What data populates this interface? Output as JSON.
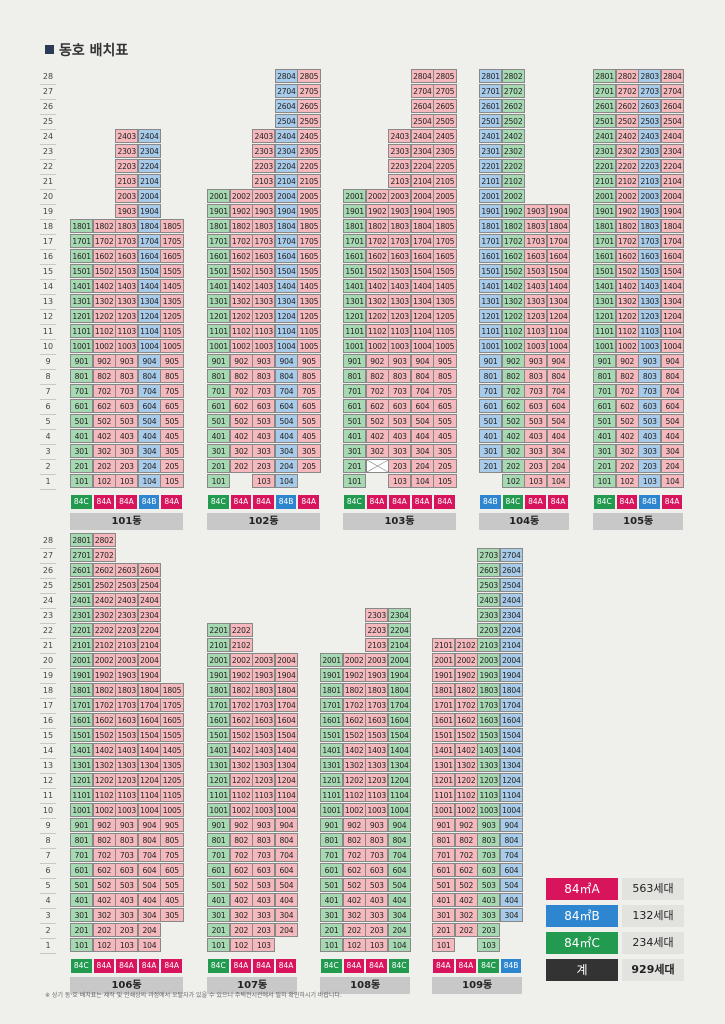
{
  "title": "동호 배치표",
  "floors": [
    "28",
    "27",
    "26",
    "25",
    "24",
    "23",
    "22",
    "21",
    "20",
    "19",
    "18",
    "17",
    "16",
    "15",
    "14",
    "13",
    "12",
    "11",
    "10",
    "9",
    "8",
    "7",
    "6",
    "5",
    "4",
    "3",
    "2",
    "1"
  ],
  "buildings": [
    {
      "name": "101동",
      "row": 0,
      "cols": [
        {
          "t": "C",
          "lo": 1,
          "hi": 18
        },
        {
          "t": "A",
          "lo": 1,
          "hi": 18
        },
        {
          "t": "A",
          "lo": 1,
          "hi": 24
        },
        {
          "t": "B",
          "lo": 1,
          "hi": 24
        },
        {
          "t": "A",
          "lo": 1,
          "hi": 18
        }
      ],
      "missing": []
    },
    {
      "name": "102동",
      "row": 0,
      "cols": [
        {
          "t": "C",
          "lo": 1,
          "hi": 20
        },
        {
          "t": "A",
          "lo": 2,
          "hi": 20
        },
        {
          "t": "A",
          "lo": 1,
          "hi": 24
        },
        {
          "t": "B",
          "lo": 1,
          "hi": 28
        },
        {
          "t": "A",
          "lo": 2,
          "hi": 28
        }
      ],
      "missing": [
        "102",
        "105"
      ]
    },
    {
      "name": "103동",
      "row": 0,
      "cols": [
        {
          "t": "C",
          "lo": 1,
          "hi": 20
        },
        {
          "t": "A",
          "lo": 2,
          "hi": 20
        },
        {
          "t": "A",
          "lo": 1,
          "hi": 24
        },
        {
          "t": "A",
          "lo": 1,
          "hi": 28
        },
        {
          "t": "A",
          "lo": 1,
          "hi": 28
        }
      ],
      "missing": [
        "202"
      ]
    },
    {
      "name": "104동",
      "row": 0,
      "cols": [
        {
          "t": "B",
          "lo": 2,
          "hi": 28
        },
        {
          "t": "C",
          "lo": 1,
          "hi": 28
        },
        {
          "t": "A",
          "lo": 1,
          "hi": 19
        },
        {
          "t": "A",
          "lo": 1,
          "hi": 19
        }
      ],
      "missing": [
        "101"
      ]
    },
    {
      "name": "105동",
      "row": 0,
      "cols": [
        {
          "t": "C",
          "lo": 1,
          "hi": 28
        },
        {
          "t": "A",
          "lo": 1,
          "hi": 28
        },
        {
          "t": "B",
          "lo": 1,
          "hi": 28
        },
        {
          "t": "A",
          "lo": 1,
          "hi": 28
        }
      ],
      "missing": []
    },
    {
      "name": "106동",
      "row": 1,
      "cols": [
        {
          "t": "C",
          "lo": 1,
          "hi": 28
        },
        {
          "t": "A",
          "lo": 1,
          "hi": 28
        },
        {
          "t": "A",
          "lo": 1,
          "hi": 26
        },
        {
          "t": "A",
          "lo": 1,
          "hi": 26
        },
        {
          "t": "A",
          "lo": 3,
          "hi": 18
        }
      ],
      "missing": [
        "205",
        "105"
      ]
    },
    {
      "name": "107동",
      "row": 1,
      "cols": [
        {
          "t": "C",
          "lo": 1,
          "hi": 22
        },
        {
          "t": "A",
          "lo": 1,
          "hi": 22
        },
        {
          "t": "A",
          "lo": 1,
          "hi": 20
        },
        {
          "t": "A",
          "lo": 2,
          "hi": 20
        }
      ],
      "missing": [
        "104"
      ]
    },
    {
      "name": "108동",
      "row": 1,
      "cols": [
        {
          "t": "C",
          "lo": 1,
          "hi": 20
        },
        {
          "t": "A",
          "lo": 1,
          "hi": 20
        },
        {
          "t": "A",
          "lo": 1,
          "hi": 23
        },
        {
          "t": "C",
          "lo": 1,
          "hi": 23
        }
      ],
      "missing": []
    },
    {
      "name": "109동",
      "row": 1,
      "cols": [
        {
          "t": "A",
          "lo": 1,
          "hi": 21
        },
        {
          "t": "A",
          "lo": 2,
          "hi": 21
        },
        {
          "t": "C",
          "lo": 1,
          "hi": 27
        },
        {
          "t": "B",
          "lo": 3,
          "hi": 27
        }
      ],
      "missing": [
        "104"
      ]
    }
  ],
  "type_labels": {
    "A": "84A",
    "B": "84B",
    "C": "84C"
  },
  "legend": [
    {
      "label": "84㎡A",
      "value": "563세대",
      "color": "#d8145c"
    },
    {
      "label": "84㎡B",
      "value": "132세대",
      "color": "#2d86cf"
    },
    {
      "label": "84㎡C",
      "value": "234세대",
      "color": "#229a4f"
    },
    {
      "label": "계",
      "value": "929세대",
      "color": "#333333"
    }
  ],
  "footnote": "※ 상기 동·호 배치표는 제작 및 인쇄상의 과정에서 오탈자가 있을 수 있으니 주택전시관에서 필히 확인하시기 바랍니다."
}
